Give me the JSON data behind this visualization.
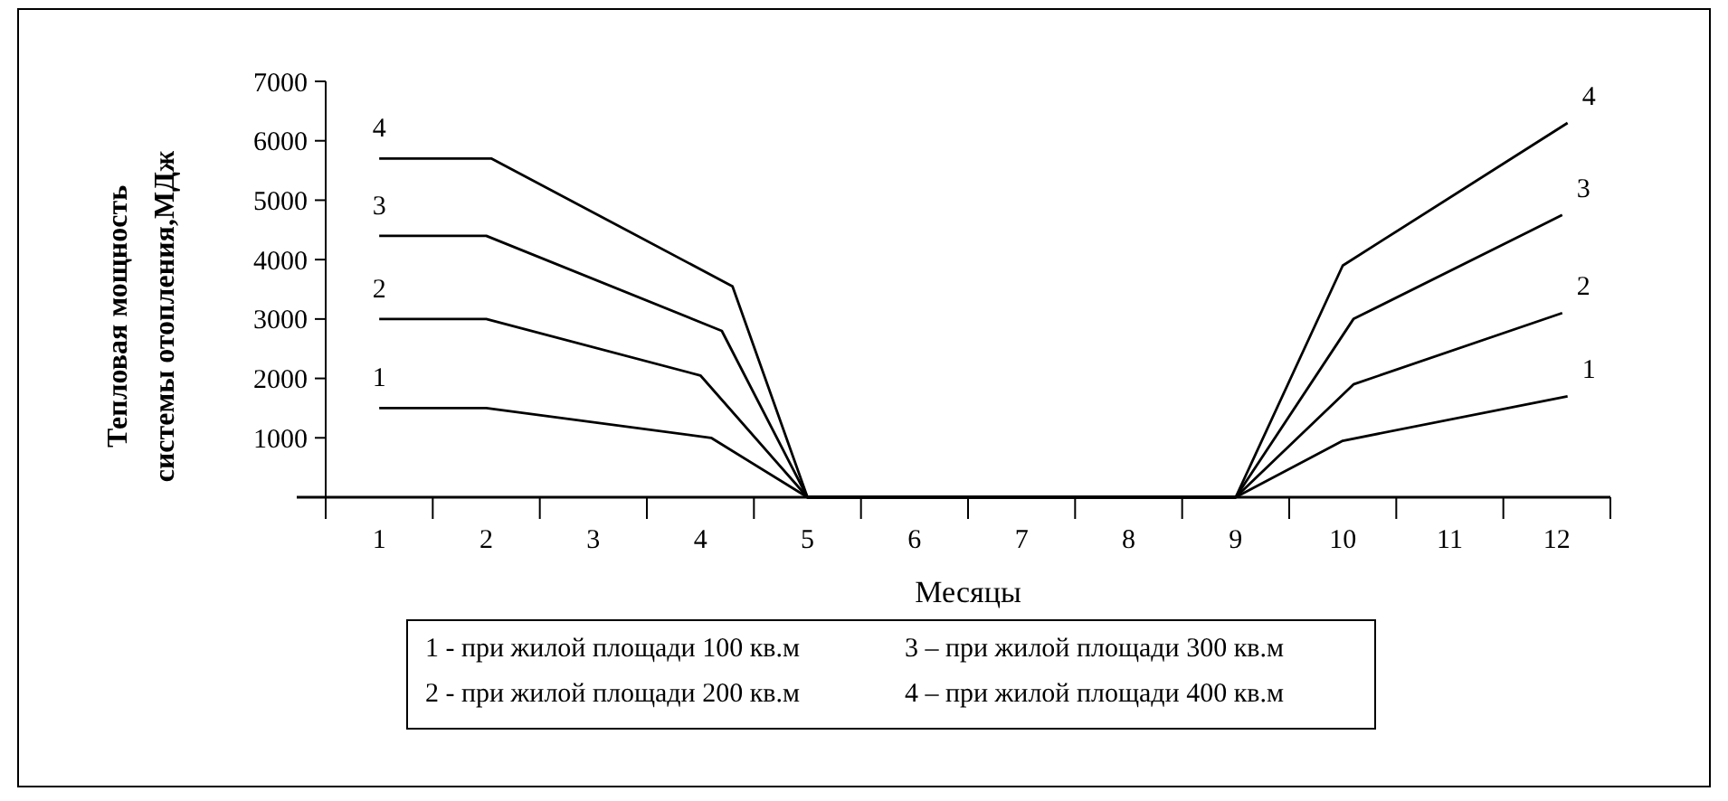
{
  "chart_data": {
    "type": "line",
    "xlabel": "Месяцы",
    "ylabel": "Тепловая мощность системы отопления,МДж",
    "xlim": [
      0.5,
      12.5
    ],
    "xticks": [
      1,
      2,
      3,
      4,
      5,
      6,
      7,
      8,
      9,
      10,
      11,
      12,
      {
        "value": 0.5,
        "label": null
      },
      {
        "value": 1.5,
        "label": null
      },
      {
        "value": 2.5,
        "label": null
      },
      {
        "value": 3.5,
        "label": null
      },
      {
        "value": 4.5,
        "label": null
      },
      {
        "value": 5.5,
        "label": null
      },
      {
        "value": 6.5,
        "label": null
      },
      {
        "value": 7.5,
        "label": null
      },
      {
        "value": 8.5,
        "label": null
      },
      {
        "value": 9.5,
        "label": null
      },
      {
        "value": 10.5,
        "label": null
      },
      {
        "value": 11.5,
        "label": null
      },
      {
        "value": 12.5,
        "label": null
      }
    ],
    "ylim": [
      0,
      7000
    ],
    "yticks": [
      1000,
      2000,
      3000,
      4000,
      5000,
      6000,
      7000
    ],
    "grid": false,
    "marker": "none",
    "line_style": "solid",
    "series": [
      {
        "name": "1",
        "color": "#000000",
        "x": [
          1,
          2,
          4.1,
          5,
          9,
          10,
          12.1
        ],
        "values": [
          1500,
          1500,
          1000,
          0,
          0,
          950,
          1700
        ]
      },
      {
        "name": "2",
        "color": "#000000",
        "x": [
          1,
          2,
          4,
          5,
          9,
          10.1,
          12.05
        ],
        "values": [
          3000,
          3000,
          2050,
          0,
          0,
          1900,
          3100
        ]
      },
      {
        "name": "3",
        "color": "#000000",
        "x": [
          1,
          2,
          4.2,
          5,
          9,
          10.1,
          12.05
        ],
        "values": [
          4400,
          4400,
          2800,
          0,
          0,
          3000,
          4750
        ]
      },
      {
        "name": "4",
        "color": "#000000",
        "x": [
          1,
          2.05,
          4.3,
          5,
          9,
          10,
          12.1
        ],
        "values": [
          5700,
          5700,
          3550,
          0,
          0,
          3900,
          6300
        ]
      }
    ],
    "annotations": [
      "1 - при жилой площади 100 кв.м",
      "2 - при жилой площади 200 кв.м",
      "3 – при жилой площади 300 кв.м",
      "4 – при жилой площади 400 кв.м"
    ]
  }
}
